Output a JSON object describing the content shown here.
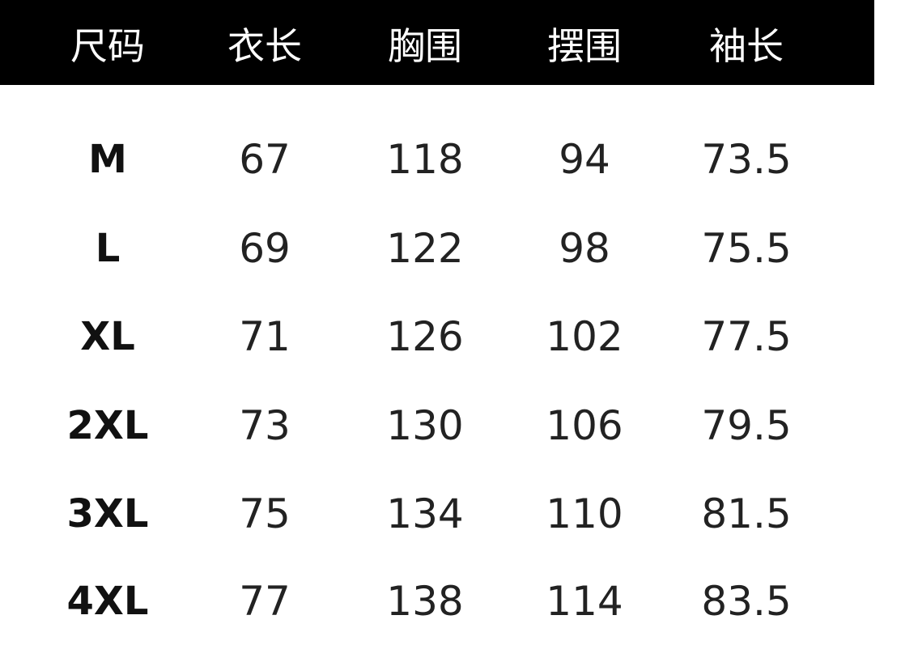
{
  "table": {
    "header_bg": "#000000",
    "headers": [
      "尺码",
      "衣长",
      "胸围",
      "摆围",
      "袖长"
    ],
    "rows": [
      [
        "M",
        "67",
        "118",
        "94",
        "73.5"
      ],
      [
        "L",
        "69",
        "122",
        "98",
        "75.5"
      ],
      [
        "XL",
        "71",
        "126",
        "102",
        "77.5"
      ],
      [
        "2XL",
        "73",
        "130",
        "106",
        "79.5"
      ],
      [
        "3XL",
        "75",
        "134",
        "110",
        "81.5"
      ],
      [
        "4XL",
        "77",
        "138",
        "114",
        "83.5"
      ]
    ]
  }
}
